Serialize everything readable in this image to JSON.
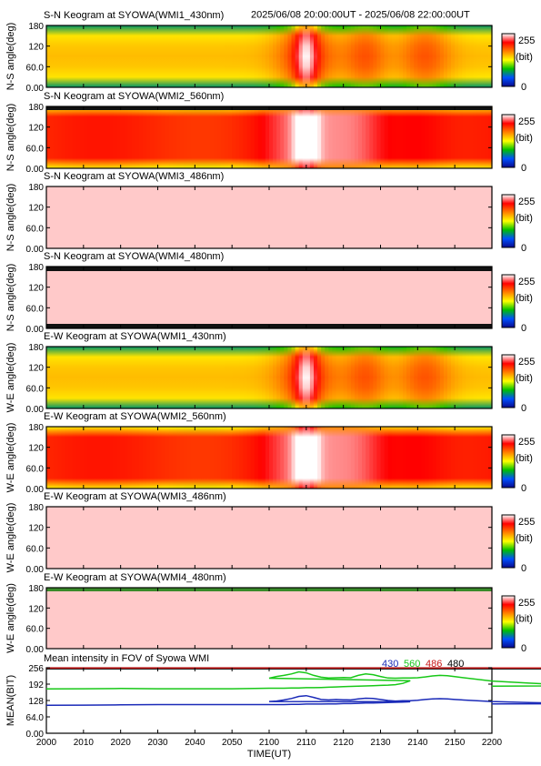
{
  "header": {
    "time_range": "2025/06/08 20:00:00UT - 2025/06/08 22:00:00UT"
  },
  "colorbar": {
    "max_label": "255",
    "unit_label": "(bit)",
    "min_label": "0",
    "stops": [
      "#0a0a8c",
      "#0050ff",
      "#00c000",
      "#ffff00",
      "#ff8000",
      "#ff0000",
      "#ffffff"
    ]
  },
  "chart_data": [
    {
      "type": "heatmap",
      "title": "S-N Keogram at SYOWA(WMI1_430nm)",
      "ylabel": "N-S angle(deg)",
      "yticks": [
        "180",
        "120",
        "60.0",
        "0.00"
      ],
      "ylim": [
        0,
        180
      ],
      "xlim": [
        2000,
        2200
      ],
      "profile": "430",
      "colormap_range": [
        0,
        255
      ],
      "visible_features": [
        "green background",
        "orange-red band near 2110",
        "orange blobs near 2125 and 2140"
      ]
    },
    {
      "type": "heatmap",
      "title": "S-N Keogram at SYOWA(WMI2_560nm)",
      "ylabel": "N-S angle(deg)",
      "yticks": [
        "180",
        "120",
        "60.0",
        "0.00"
      ],
      "ylim": [
        0,
        180
      ],
      "xlim": [
        2000,
        2200
      ],
      "profile": "560",
      "colormap_range": [
        0,
        255
      ],
      "visible_features": [
        "red background",
        "saturated white column near 2110"
      ]
    },
    {
      "type": "heatmap",
      "title": "S-N Keogram at SYOWA(WMI3_486nm)",
      "ylabel": "N-S angle(deg)",
      "yticks": [
        "180",
        "120",
        "60.0",
        "0.00"
      ],
      "ylim": [
        0,
        180
      ],
      "xlim": [
        2000,
        2200
      ],
      "profile": "saturated",
      "colormap_range": [
        0,
        255
      ]
    },
    {
      "type": "heatmap",
      "title": "S-N Keogram at SYOWA(WMI4_480nm)",
      "ylabel": "N-S angle(deg)",
      "yticks": [
        "180",
        "120",
        "60.0",
        "0.00"
      ],
      "ylim": [
        0,
        180
      ],
      "xlim": [
        2000,
        2200
      ],
      "profile": "saturated",
      "colormap_range": [
        0,
        255
      ]
    },
    {
      "type": "heatmap",
      "title": "E-W Keogram at SYOWA(WMI1_430nm)",
      "ylabel": "W-E angle(deg)",
      "yticks": [
        "180",
        "120",
        "60.0",
        "0.00"
      ],
      "ylim": [
        0,
        180
      ],
      "xlim": [
        2000,
        2200
      ],
      "profile": "430",
      "colormap_range": [
        0,
        255
      ]
    },
    {
      "type": "heatmap",
      "title": "E-W Keogram at SYOWA(WMI2_560nm)",
      "ylabel": "W-E angle(deg)",
      "yticks": [
        "180",
        "120",
        "60.0",
        "0.00"
      ],
      "ylim": [
        0,
        180
      ],
      "xlim": [
        2000,
        2200
      ],
      "profile": "560",
      "colormap_range": [
        0,
        255
      ]
    },
    {
      "type": "heatmap",
      "title": "E-W Keogram at SYOWA(WMI3_486nm)",
      "ylabel": "W-E angle(deg)",
      "yticks": [
        "180",
        "120",
        "60.0",
        "0.00"
      ],
      "ylim": [
        0,
        180
      ],
      "xlim": [
        2000,
        2200
      ],
      "profile": "saturated",
      "colormap_range": [
        0,
        255
      ]
    },
    {
      "type": "heatmap",
      "title": "E-W Keogram at SYOWA(WMI4_480nm)",
      "ylabel": "W-E angle(deg)",
      "yticks": [
        "180",
        "120",
        "60.0",
        "0.00"
      ],
      "ylim": [
        0,
        180
      ],
      "xlim": [
        2000,
        2200
      ],
      "profile": "saturated",
      "colormap_range": [
        0,
        255
      ]
    },
    {
      "type": "line",
      "title": "Mean intensity in FOV of Syowa WMI",
      "ylabel": "MEAN(BIT)",
      "xlabel": "TIME(UT)",
      "xlim": [
        2000,
        2200
      ],
      "ylim": [
        0,
        256
      ],
      "yticks": [
        "256",
        "192",
        "128",
        "64.0",
        "0.00"
      ],
      "xticks": [
        "2000",
        "2010",
        "2020",
        "2030",
        "2040",
        "2050",
        "2100",
        "2110",
        "2120",
        "2130",
        "2140",
        "2150",
        "2200"
      ],
      "legend": [
        {
          "name": "430",
          "color": "#1a2ab8"
        },
        {
          "name": "560",
          "color": "#18c818"
        },
        {
          "name": "486",
          "color": "#c81818"
        },
        {
          "name": "480",
          "color": "#000000"
        }
      ],
      "x": [
        2000,
        2010,
        2020,
        2030,
        2040,
        2050,
        2056,
        2060,
        2064,
        2066,
        2068,
        2070,
        2072,
        2074,
        2076,
        2078,
        2080,
        2082,
        2084,
        2086,
        2088,
        2090,
        2092,
        2094,
        2096,
        2098,
        2100,
        2102,
        2104,
        2106,
        2108,
        2110,
        2112,
        2114,
        2116,
        2118,
        2120,
        2122,
        2124,
        2126,
        2128,
        2130,
        2132,
        2134,
        2136,
        2138,
        2140,
        2142,
        2144,
        2146,
        2148,
        2150,
        2160,
        2170,
        2180,
        2190,
        2200
      ],
      "series": [
        {
          "name": "480",
          "values": [
            252,
            252,
            252,
            252,
            252,
            252,
            252,
            252,
            252,
            252,
            252,
            252,
            252,
            252,
            252,
            252,
            252,
            252,
            252,
            252,
            252,
            252,
            252,
            252,
            252,
            252,
            252,
            252,
            252,
            252,
            252,
            252,
            252,
            252,
            252,
            252,
            252,
            252,
            252,
            252,
            252,
            252,
            252,
            252,
            252,
            252,
            252,
            252,
            252,
            252,
            252,
            252,
            252,
            252,
            252,
            252,
            252
          ]
        },
        {
          "name": "486",
          "values": [
            255,
            255,
            255,
            255,
            255,
            255,
            255,
            255,
            255,
            255,
            255,
            255,
            255,
            255,
            255,
            255,
            255,
            255,
            255,
            255,
            255,
            255,
            255,
            255,
            255,
            255,
            255,
            255,
            255,
            255,
            255,
            255,
            255,
            255,
            255,
            255,
            255,
            255,
            255,
            255,
            255,
            255,
            255,
            255,
            255,
            255,
            255,
            255,
            255,
            255,
            255,
            255,
            255,
            255,
            255,
            255,
            255
          ]
        },
        {
          "name": "560",
          "values": [
            173,
            174,
            175,
            174,
            174,
            174,
            175,
            176,
            176,
            177,
            177,
            178,
            178,
            179,
            180,
            181,
            182,
            183,
            184,
            185,
            186,
            187,
            188,
            190,
            195,
            205,
            215,
            222,
            226,
            232,
            240,
            236,
            226,
            219,
            216,
            217,
            218,
            217,
            226,
            232,
            229,
            222,
            216,
            215,
            216,
            216,
            217,
            220,
            224,
            226,
            225,
            221,
            204,
            196,
            190,
            186,
            184
          ]
        },
        {
          "name": "430",
          "values": [
            109,
            110,
            111,
            112,
            112,
            112,
            112,
            112,
            112,
            113,
            113,
            114,
            114,
            114,
            115,
            115,
            116,
            116,
            117,
            118,
            118,
            119,
            120,
            121,
            122,
            123,
            124,
            126,
            130,
            136,
            144,
            147,
            140,
            132,
            130,
            132,
            131,
            130,
            134,
            137,
            136,
            132,
            128,
            126,
            127,
            127,
            129,
            132,
            134,
            135,
            134,
            132,
            124,
            120,
            118,
            116,
            115
          ]
        }
      ]
    }
  ]
}
